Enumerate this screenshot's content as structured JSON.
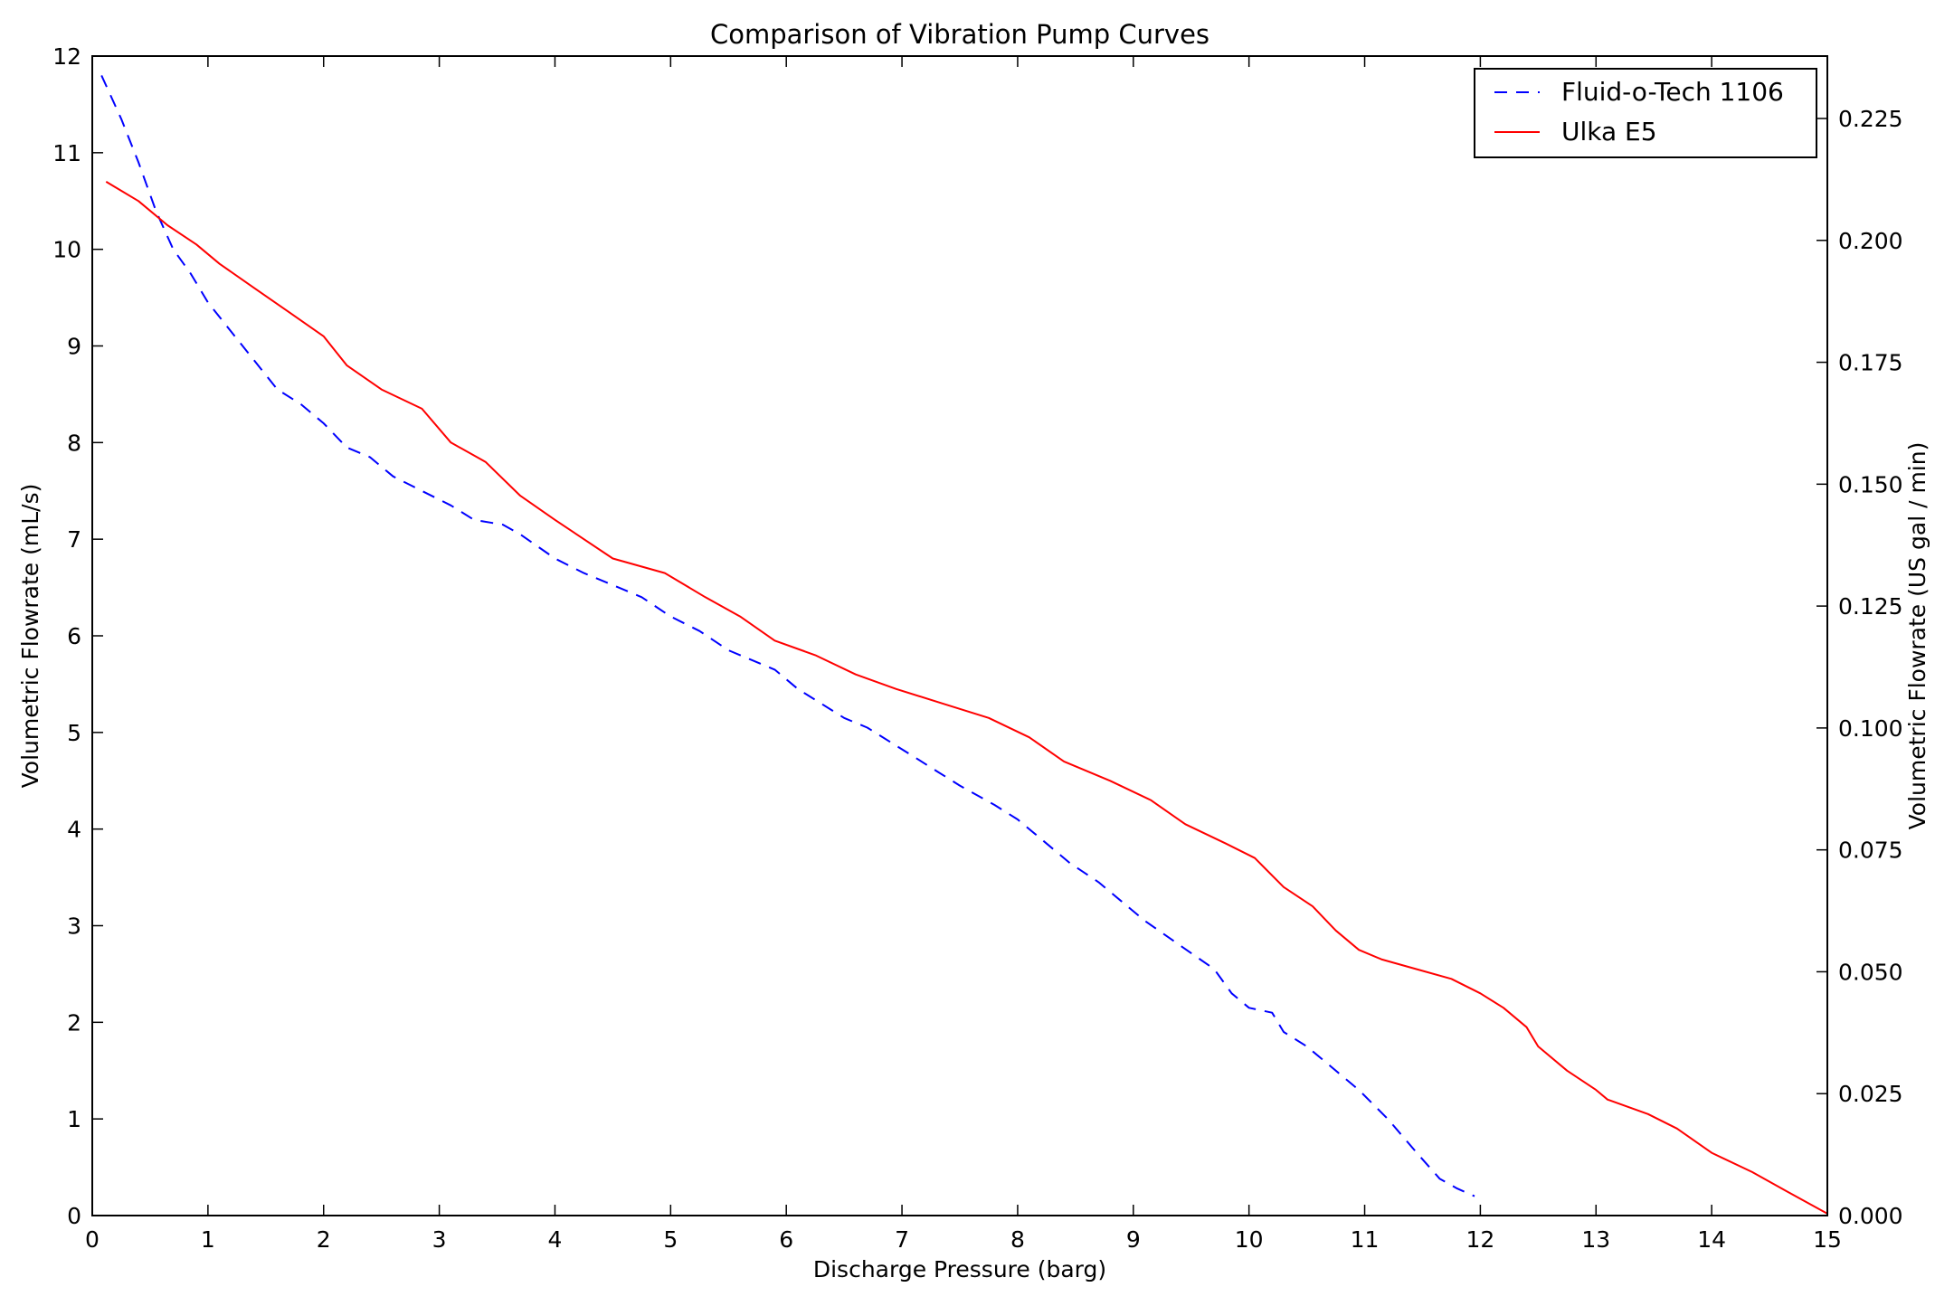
{
  "chart_data": {
    "type": "line",
    "title": "Comparison of Vibration Pump Curves",
    "xlabel": "Discharge Pressure (barg)",
    "ylabel": "Volumetric Flowrate (mL/s)",
    "ylabel_right": "Volumetric Flowrate (US gal / min)",
    "xlim": [
      0,
      15
    ],
    "ylim": [
      0,
      12
    ],
    "ylim_right": [
      0,
      0.2378
    ],
    "x_ticks": [
      0,
      1,
      2,
      3,
      4,
      5,
      6,
      7,
      8,
      9,
      10,
      11,
      12,
      13,
      14,
      15
    ],
    "y_ticks": [
      0,
      1,
      2,
      3,
      4,
      5,
      6,
      7,
      8,
      9,
      10,
      11,
      12
    ],
    "y_ticks_right": [
      "0.000",
      "0.025",
      "0.050",
      "0.075",
      "0.100",
      "0.125",
      "0.150",
      "0.175",
      "0.200",
      "0.225"
    ],
    "y_ticks_right_values": [
      0,
      0.025,
      0.05,
      0.075,
      0.1,
      0.125,
      0.15,
      0.175,
      0.2,
      0.225
    ],
    "grid": false,
    "legend_position": "top-right",
    "series": [
      {
        "name": "Fluid-o-Tech 1106",
        "color": "#0000ff",
        "style": "dashed",
        "x": [
          0.08,
          0.25,
          0.4,
          0.55,
          0.7,
          0.85,
          1.0,
          1.2,
          1.4,
          1.6,
          1.8,
          2.0,
          2.2,
          2.4,
          2.6,
          2.85,
          3.1,
          3.3,
          3.55,
          3.7,
          4.0,
          4.25,
          4.55,
          4.75,
          5.0,
          5.25,
          5.5,
          5.7,
          5.9,
          6.1,
          6.3,
          6.5,
          6.7,
          6.9,
          7.1,
          7.3,
          7.5,
          7.8,
          8.0,
          8.2,
          8.45,
          8.7,
          8.9,
          9.1,
          9.4,
          9.7,
          9.85,
          10.0,
          10.2,
          10.3,
          10.5,
          10.7,
          10.95,
          11.2,
          11.45,
          11.65,
          11.8,
          11.95
        ],
        "y": [
          11.8,
          11.35,
          10.9,
          10.4,
          10.0,
          9.75,
          9.45,
          9.15,
          8.85,
          8.55,
          8.4,
          8.2,
          7.95,
          7.85,
          7.65,
          7.5,
          7.35,
          7.2,
          7.15,
          7.05,
          6.8,
          6.65,
          6.5,
          6.4,
          6.2,
          6.05,
          5.85,
          5.75,
          5.65,
          5.45,
          5.3,
          5.15,
          5.05,
          4.9,
          4.75,
          4.6,
          4.45,
          4.25,
          4.1,
          3.9,
          3.65,
          3.45,
          3.25,
          3.05,
          2.8,
          2.55,
          2.3,
          2.15,
          2.1,
          1.9,
          1.75,
          1.55,
          1.3,
          1.0,
          0.65,
          0.38,
          0.28,
          0.2
        ]
      },
      {
        "name": "Ulka E5",
        "color": "#ff0000",
        "style": "solid",
        "x": [
          0.12,
          0.4,
          0.65,
          0.9,
          1.1,
          1.4,
          1.7,
          2.0,
          2.2,
          2.5,
          2.85,
          3.1,
          3.4,
          3.7,
          4.0,
          4.5,
          4.95,
          5.3,
          5.6,
          5.9,
          6.25,
          6.6,
          6.95,
          7.35,
          7.75,
          8.1,
          8.4,
          8.8,
          9.15,
          9.45,
          9.8,
          10.05,
          10.3,
          10.55,
          10.75,
          10.95,
          11.15,
          11.45,
          11.75,
          12.0,
          12.2,
          12.4,
          12.5,
          12.75,
          13.0,
          13.1,
          13.45,
          13.7,
          14.0,
          14.35,
          14.65,
          15.0
        ],
        "y": [
          10.7,
          10.5,
          10.25,
          10.05,
          9.85,
          9.6,
          9.35,
          9.1,
          8.8,
          8.55,
          8.35,
          8.0,
          7.8,
          7.45,
          7.2,
          6.8,
          6.65,
          6.4,
          6.2,
          5.95,
          5.8,
          5.6,
          5.45,
          5.3,
          5.15,
          4.95,
          4.7,
          4.5,
          4.3,
          4.05,
          3.85,
          3.7,
          3.4,
          3.2,
          2.95,
          2.75,
          2.65,
          2.55,
          2.45,
          2.3,
          2.15,
          1.95,
          1.75,
          1.5,
          1.3,
          1.2,
          1.05,
          0.9,
          0.65,
          0.45,
          0.25,
          0.02
        ]
      }
    ]
  }
}
